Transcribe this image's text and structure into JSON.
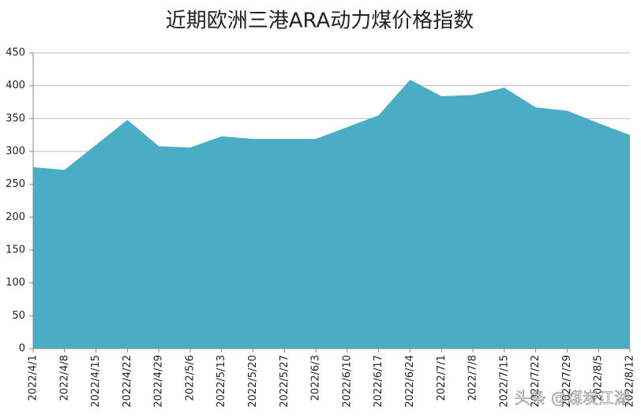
{
  "chart_data": {
    "type": "area",
    "title": "近期欧洲三港ARA动力煤价格指数",
    "categories": [
      "2022/4/1",
      "2022/4/8",
      "2022/4/15",
      "2022/4/22",
      "2022/4/29",
      "2022/5/6",
      "2022/5/13",
      "2022/5/20",
      "2022/5/27",
      "2022/6/3",
      "2022/6/10",
      "2022/6/17",
      "2022/6/24",
      "2022/7/1",
      "2022/7/8",
      "2022/7/15",
      "2022/7/22",
      "2022/7/29",
      "2022/8/5",
      "2022/8/12"
    ],
    "values": [
      276,
      272,
      310,
      348,
      308,
      306,
      323,
      319,
      319,
      319,
      337,
      355,
      409,
      384,
      386,
      397,
      367,
      362,
      343,
      325
    ],
    "color": "#4bacc6",
    "ylim": [
      0,
      450
    ],
    "yticks": [
      0,
      50,
      100,
      150,
      200,
      250,
      300,
      350,
      400,
      450
    ],
    "grid": true,
    "watermark": "头条 @煤炭江湖"
  }
}
